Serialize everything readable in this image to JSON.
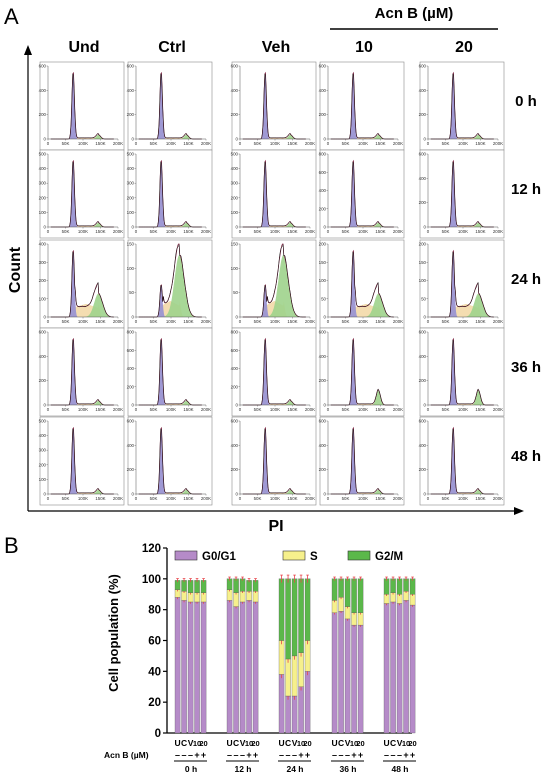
{
  "panel_a": {
    "letter": "A",
    "treatment_header": "Acn B (µM)",
    "columns": [
      "Und",
      "Ctrl",
      "Veh",
      "10",
      "20"
    ],
    "rows": [
      "0 h",
      "12 h",
      "24 h",
      "36 h",
      "48 h"
    ],
    "ylabel": "Count",
    "xlabel": "PI",
    "x_ticks": [
      "0",
      "50K",
      "100K",
      "150K",
      "200K"
    ],
    "row_ymax": [
      600,
      500,
      400,
      600,
      500
    ],
    "row_ymax_by_col": [
      [
        600,
        600,
        600,
        600,
        600
      ],
      [
        500,
        500,
        500,
        800,
        600
      ],
      [
        400,
        150,
        150,
        200,
        200
      ],
      [
        600,
        800,
        800,
        600,
        600
      ],
      [
        500,
        600,
        600,
        600,
        600
      ]
    ],
    "colors": {
      "g1": "#9a93d2",
      "s": "#f3d9a8",
      "g2": "#9fd38c",
      "outline": "#7a1f3d",
      "trace": "#111111"
    }
  },
  "chart_data": {
    "type": "bar",
    "panel_letter": "B",
    "ylabel": "Cell population (%)",
    "ylim": [
      0,
      120
    ],
    "yticks": [
      "0",
      "20",
      "40",
      "60",
      "80",
      "100",
      "120"
    ],
    "legend": [
      {
        "name": "G0/G1",
        "color": "#b58bc8"
      },
      {
        "name": "S",
        "color": "#f6f08c"
      },
      {
        "name": "G2/M",
        "color": "#5bb84a"
      }
    ],
    "legend_position": "top",
    "groups": [
      "0 h",
      "12 h",
      "24 h",
      "36 h",
      "48 h"
    ],
    "bar_labels": [
      "U",
      "C",
      "V",
      "10",
      "20"
    ],
    "acn_label": "Acn B (µM)",
    "acn_signs": [
      "–",
      "–",
      "–",
      "+",
      "+"
    ],
    "series": [
      {
        "name": "G0/G1",
        "values": [
          [
            88,
            86,
            85,
            85,
            85
          ],
          [
            86,
            82,
            85,
            86,
            85
          ],
          [
            38,
            24,
            24,
            30,
            40
          ],
          [
            78,
            79,
            74,
            70,
            70
          ],
          [
            84,
            85,
            84,
            86,
            83
          ]
        ]
      },
      {
        "name": "S",
        "values": [
          [
            5,
            6,
            6,
            6,
            6
          ],
          [
            7,
            9,
            7,
            6,
            7
          ],
          [
            22,
            24,
            26,
            22,
            20
          ],
          [
            8,
            9,
            8,
            8,
            8
          ],
          [
            6,
            6,
            6,
            6,
            7
          ]
        ]
      },
      {
        "name": "G2/M",
        "values": [
          [
            6,
            7,
            8,
            8,
            8
          ],
          [
            7,
            9,
            8,
            7,
            7
          ],
          [
            40,
            52,
            50,
            48,
            40
          ],
          [
            14,
            12,
            18,
            22,
            22
          ],
          [
            10,
            9,
            10,
            8,
            10
          ]
        ]
      }
    ],
    "error_bar_color": "#e8474c"
  }
}
